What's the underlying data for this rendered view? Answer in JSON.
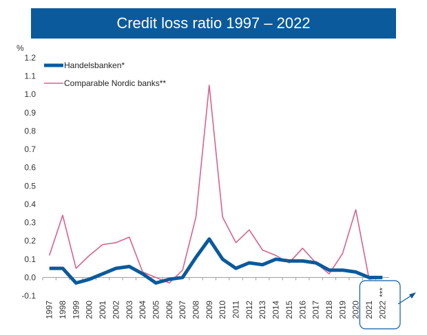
{
  "chart_data": {
    "type": "line",
    "title": "Credit loss ratio 1997 – 2022",
    "ylabel": "%",
    "xlabel": "",
    "ylim": [
      -0.1,
      1.2
    ],
    "yticks": [
      "-0.1",
      "0.0",
      "0.1",
      "0.2",
      "0.3",
      "0.4",
      "0.5",
      "0.6",
      "0.7",
      "0.8",
      "0.9",
      "1.0",
      "1.1",
      "1.2"
    ],
    "x": [
      "1997",
      "1998",
      "1999",
      "2000",
      "2001",
      "2002",
      "2003",
      "2004",
      "2005",
      "2006",
      "2007",
      "2008",
      "2009",
      "2010",
      "2011",
      "2012",
      "2013",
      "2014",
      "2015",
      "2016",
      "2017",
      "2018",
      "2019",
      "2020",
      "2021",
      "2022"
    ],
    "series": [
      {
        "name": "Handelsbanken*",
        "color": "#0a5a9c",
        "values": [
          0.05,
          0.05,
          -0.03,
          -0.01,
          0.02,
          0.05,
          0.06,
          0.02,
          -0.03,
          -0.01,
          0.0,
          0.11,
          0.21,
          0.1,
          0.05,
          0.08,
          0.07,
          0.1,
          0.09,
          0.09,
          0.08,
          0.04,
          0.04,
          0.03,
          0.0,
          0.0
        ]
      },
      {
        "name": "Comparable Nordic banks**",
        "color": "#d9608e",
        "values": [
          0.12,
          0.34,
          0.05,
          0.12,
          0.18,
          0.19,
          0.22,
          0.03,
          0.0,
          -0.03,
          0.04,
          0.33,
          1.05,
          0.33,
          0.19,
          0.26,
          0.15,
          0.12,
          0.08,
          0.16,
          0.08,
          0.02,
          0.13,
          0.37,
          -0.01,
          0.0
        ]
      }
    ],
    "annotation": "***"
  }
}
